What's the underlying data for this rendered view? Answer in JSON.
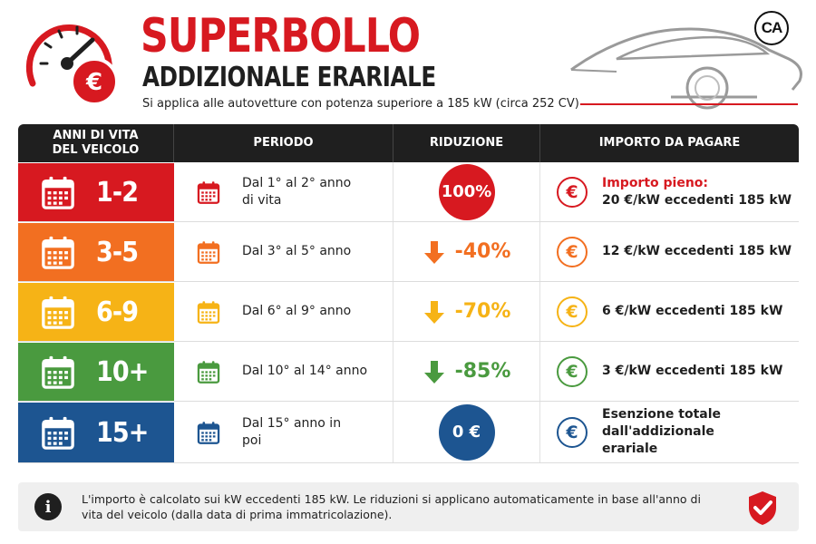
{
  "header": {
    "title": "SUPERBOLLO",
    "subtitle": "ADDIZIONALE ERARIALE",
    "note": "Si applica alle autovetture con potenza superiore a 185 kW (circa 252 CV)",
    "badge": "CA"
  },
  "table": {
    "headers": [
      "ANNI DI VITA DEL VEICOLO",
      "PERIODO",
      "RIDUZIONE",
      "IMPORTO DA PAGARE"
    ],
    "rows": [
      {
        "years": "1-2",
        "color": "#d71920",
        "period": "Dal 1° al 2° anno di vita",
        "reduction": "100%",
        "reduction_style": "circle",
        "amount_highlight": "Importo pieno:",
        "amount": "20 €/kW eccedenti 185 kW"
      },
      {
        "years": "3-5",
        "color": "#f26f21",
        "period": "Dal 3° al 5° anno",
        "reduction": "-40%",
        "reduction_style": "arrow",
        "amount_highlight": "",
        "amount": "12 €/kW eccedenti 185 kW"
      },
      {
        "years": "6-9",
        "color": "#f6b316",
        "period": "Dal 6° al 9° anno",
        "reduction": "-70%",
        "reduction_style": "arrow",
        "amount_highlight": "",
        "amount": "6 €/kW eccedenti 185 kW"
      },
      {
        "years": "10+",
        "color": "#4a9a3f",
        "period": "Dal 10° al 14° anno",
        "reduction": "-85%",
        "reduction_style": "arrow",
        "amount_highlight": "",
        "amount": "3 €/kW eccedenti 185 kW"
      },
      {
        "years": "15+",
        "color": "#1d5591",
        "period": "Dal 15° anno in poi",
        "reduction": "0 €",
        "reduction_style": "circle",
        "amount_highlight": "",
        "amount": "Esenzione totale dall'addizionale erariale"
      }
    ]
  },
  "footer": {
    "text": "L'importo è calcolato sui kW eccedenti 185 kW. Le riduzioni si applicano automaticamente in base all'anno di vita del veicolo (dalla data di prima immatricolazione)."
  },
  "icons": {
    "gauge": "speedometer-euro-icon",
    "car": "car-outline-icon",
    "calendar": "calendar-icon",
    "arrow": "arrow-down-icon",
    "euro": "euro-icon",
    "info": "info-icon",
    "shield": "shield-check-icon"
  }
}
